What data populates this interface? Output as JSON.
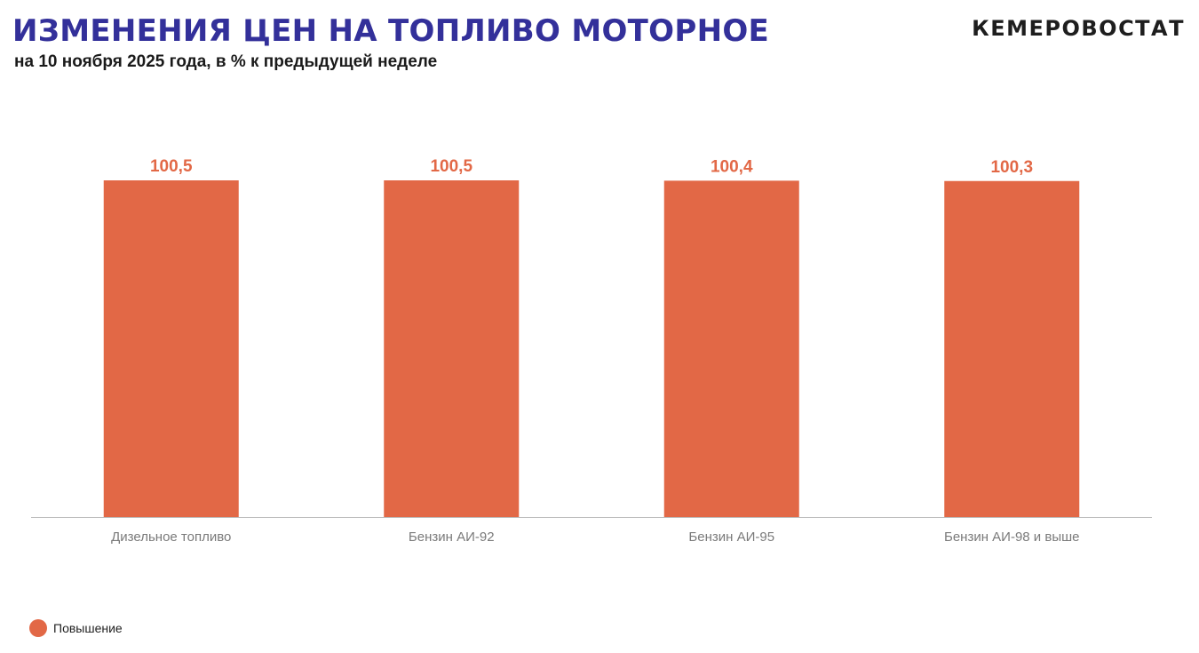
{
  "header": {
    "title": "ИЗМЕНЕНИЯ ЦЕН НА ТОПЛИВО МОТОРНОЕ",
    "subtitle": "на 10 ноября 2025 года, в % к предыдущей неделе",
    "logo": "КЕМЕРОВОСТАТ"
  },
  "colors": {
    "title": "#33309a",
    "bar": "#e26846",
    "value_label": "#e26846",
    "axis": "#bdbdbd",
    "tick_label": "#7a7a7a"
  },
  "chart_data": {
    "type": "bar",
    "title": "ИЗМЕНЕНИЯ ЦЕН НА ТОПЛИВО МОТОРНОЕ",
    "subtitle": "на 10 ноября 2025 года, в % к предыдущей неделе",
    "categories": [
      "Дизельное топливо",
      "Бензин АИ-92",
      "Бензин АИ-95",
      "Бензин АИ-98 и выше"
    ],
    "series": [
      {
        "name": "Повышение",
        "values": [
          100.5,
          100.5,
          100.4,
          100.3
        ],
        "value_labels": [
          "100,5",
          "100,5",
          "100,4",
          "100,3"
        ]
      }
    ],
    "ylim": [
      0,
      100.5
    ],
    "grid": false,
    "legend": "bottom-left"
  },
  "legend": {
    "items": [
      {
        "label": "Повышение"
      }
    ]
  }
}
